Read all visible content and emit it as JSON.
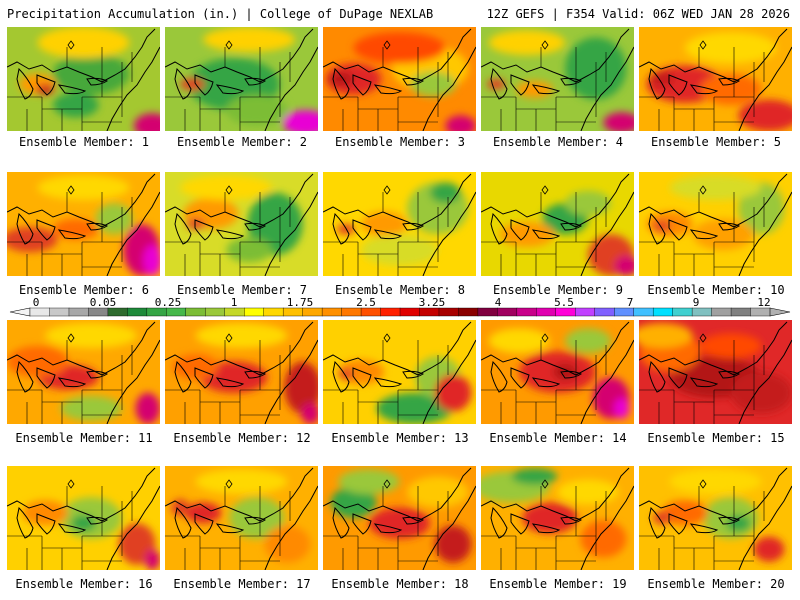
{
  "header": {
    "title": "Precipitation Accumulation (in.) | College of DuPage NEXLAB",
    "run_info": "12Z GEFS | F354 Valid: 06Z WED JAN 28 2026"
  },
  "members": [
    {
      "label": "Ensemble Member: 1",
      "base": "#a4c830",
      "blobs": [
        [
          "#46a83a",
          0.55,
          0.45,
          0.25,
          0.2
        ],
        [
          "#ff9a00",
          0.2,
          0.55,
          0.12,
          0.1
        ],
        [
          "#cc1a1a",
          0.25,
          0.6,
          0.06,
          0.05
        ],
        [
          "#d40070",
          0.95,
          0.95,
          0.12,
          0.12
        ],
        [
          "#ffd100",
          0.5,
          0.15,
          0.3,
          0.15
        ],
        [
          "#35a545",
          0.45,
          0.75,
          0.15,
          0.12
        ]
      ]
    },
    {
      "label": "Ensemble Member: 2",
      "base": "#9ac83a",
      "blobs": [
        [
          "#35a545",
          0.45,
          0.55,
          0.3,
          0.25
        ],
        [
          "#e04020",
          0.18,
          0.55,
          0.08,
          0.06
        ],
        [
          "#e800d4",
          0.92,
          0.92,
          0.15,
          0.12
        ],
        [
          "#ffd100",
          0.55,
          0.12,
          0.3,
          0.12
        ],
        [
          "#7cbd36",
          0.6,
          0.8,
          0.2,
          0.15
        ]
      ]
    },
    {
      "label": "Ensemble Member: 3",
      "base": "#ff8a00",
      "blobs": [
        [
          "#e02828",
          0.2,
          0.5,
          0.18,
          0.15
        ],
        [
          "#b31515",
          0.12,
          0.5,
          0.08,
          0.06
        ],
        [
          "#ffc800",
          0.7,
          0.4,
          0.25,
          0.22
        ],
        [
          "#9ac83a",
          0.72,
          0.55,
          0.15,
          0.12
        ],
        [
          "#ff4a00",
          0.5,
          0.2,
          0.3,
          0.15
        ],
        [
          "#d40070",
          0.9,
          0.95,
          0.1,
          0.1
        ]
      ]
    },
    {
      "label": "Ensemble Member: 4",
      "base": "#9ac83a",
      "blobs": [
        [
          "#35a545",
          0.75,
          0.4,
          0.2,
          0.3
        ],
        [
          "#ffd100",
          0.3,
          0.15,
          0.25,
          0.12
        ],
        [
          "#e04020",
          0.1,
          0.55,
          0.06,
          0.05
        ],
        [
          "#d40070",
          0.92,
          0.92,
          0.12,
          0.1
        ],
        [
          "#ff9a00",
          0.35,
          0.6,
          0.12,
          0.08
        ]
      ]
    },
    {
      "label": "Ensemble Member: 5",
      "base": "#ffb000",
      "blobs": [
        [
          "#e02828",
          0.3,
          0.55,
          0.25,
          0.18
        ],
        [
          "#c41a1a",
          0.15,
          0.5,
          0.08,
          0.07
        ],
        [
          "#ff6a00",
          0.6,
          0.6,
          0.2,
          0.15
        ],
        [
          "#ffd800",
          0.6,
          0.2,
          0.3,
          0.15
        ],
        [
          "#e02828",
          0.85,
          0.85,
          0.2,
          0.15
        ]
      ]
    },
    {
      "label": "Ensemble Member: 6",
      "base": "#ffb000",
      "blobs": [
        [
          "#e04020",
          0.15,
          0.65,
          0.18,
          0.12
        ],
        [
          "#d40070",
          0.88,
          0.75,
          0.12,
          0.25
        ],
        [
          "#e800d4",
          0.95,
          0.85,
          0.06,
          0.15
        ],
        [
          "#9ac83a",
          0.7,
          0.45,
          0.12,
          0.15
        ],
        [
          "#ff6a00",
          0.45,
          0.55,
          0.15,
          0.1
        ],
        [
          "#ffd800",
          0.5,
          0.15,
          0.3,
          0.12
        ]
      ]
    },
    {
      "label": "Ensemble Member: 7",
      "base": "#d8dc28",
      "blobs": [
        [
          "#35a545",
          0.72,
          0.5,
          0.18,
          0.3
        ],
        [
          "#ff9a00",
          0.3,
          0.4,
          0.18,
          0.15
        ],
        [
          "#e04020",
          0.2,
          0.5,
          0.06,
          0.05
        ],
        [
          "#ffd800",
          0.4,
          0.15,
          0.3,
          0.12
        ],
        [
          "#7cbd36",
          0.55,
          0.75,
          0.15,
          0.12
        ]
      ]
    },
    {
      "label": "Ensemble Member: 8",
      "base": "#ffd800",
      "blobs": [
        [
          "#9ac83a",
          0.75,
          0.35,
          0.2,
          0.25
        ],
        [
          "#ff9a00",
          0.4,
          0.5,
          0.15,
          0.12
        ],
        [
          "#e04020",
          0.15,
          0.55,
          0.06,
          0.05
        ],
        [
          "#d8dc28",
          0.5,
          0.75,
          0.25,
          0.15
        ],
        [
          "#35a545",
          0.8,
          0.2,
          0.1,
          0.1
        ]
      ]
    },
    {
      "label": "Ensemble Member: 9",
      "base": "#e8d800",
      "blobs": [
        [
          "#35a545",
          0.55,
          0.45,
          0.15,
          0.15
        ],
        [
          "#ff9a00",
          0.3,
          0.6,
          0.18,
          0.12
        ],
        [
          "#e04020",
          0.85,
          0.8,
          0.15,
          0.2
        ],
        [
          "#d40070",
          0.95,
          0.9,
          0.08,
          0.1
        ],
        [
          "#9ac83a",
          0.7,
          0.3,
          0.15,
          0.12
        ]
      ]
    },
    {
      "label": "Ensemble Member: 10",
      "base": "#ffd000",
      "blobs": [
        [
          "#9ac83a",
          0.8,
          0.35,
          0.15,
          0.25
        ],
        [
          "#ff8a00",
          0.2,
          0.5,
          0.15,
          0.12
        ],
        [
          "#e04020",
          0.15,
          0.52,
          0.06,
          0.05
        ],
        [
          "#ffa000",
          0.55,
          0.6,
          0.2,
          0.15
        ],
        [
          "#d8dc28",
          0.5,
          0.15,
          0.3,
          0.12
        ]
      ]
    },
    {
      "label": "Ensemble Member: 11",
      "base": "#ffa800",
      "blobs": [
        [
          "#e02828",
          0.4,
          0.55,
          0.2,
          0.12
        ],
        [
          "#ff6a00",
          0.2,
          0.4,
          0.2,
          0.15
        ],
        [
          "#d40070",
          0.92,
          0.85,
          0.08,
          0.15
        ],
        [
          "#9ac83a",
          0.55,
          0.85,
          0.2,
          0.12
        ],
        [
          "#ffd800",
          0.55,
          0.15,
          0.3,
          0.12
        ]
      ]
    },
    {
      "label": "Ensemble Member: 12",
      "base": "#ffa000",
      "blobs": [
        [
          "#e02828",
          0.45,
          0.55,
          0.22,
          0.15
        ],
        [
          "#c41a1a",
          0.9,
          0.65,
          0.12,
          0.25
        ],
        [
          "#ff6a00",
          0.2,
          0.45,
          0.15,
          0.12
        ],
        [
          "#ffd800",
          0.5,
          0.15,
          0.3,
          0.12
        ],
        [
          "#d40070",
          0.95,
          0.9,
          0.06,
          0.1
        ]
      ]
    },
    {
      "label": "Ensemble Member: 13",
      "base": "#ffd000",
      "blobs": [
        [
          "#35a545",
          0.6,
          0.85,
          0.25,
          0.15
        ],
        [
          "#9ac83a",
          0.75,
          0.55,
          0.15,
          0.2
        ],
        [
          "#e02828",
          0.85,
          0.7,
          0.12,
          0.18
        ],
        [
          "#ff8a00",
          0.25,
          0.5,
          0.15,
          0.12
        ],
        [
          "#e04020",
          0.15,
          0.52,
          0.05,
          0.05
        ]
      ]
    },
    {
      "label": "Ensemble Member: 14",
      "base": "#ff9a00",
      "blobs": [
        [
          "#e02828",
          0.5,
          0.5,
          0.25,
          0.2
        ],
        [
          "#b31515",
          0.55,
          0.5,
          0.08,
          0.08
        ],
        [
          "#d40070",
          0.85,
          0.75,
          0.12,
          0.2
        ],
        [
          "#e800d4",
          0.92,
          0.85,
          0.05,
          0.1
        ],
        [
          "#9ac83a",
          0.7,
          0.2,
          0.15,
          0.12
        ],
        [
          "#ffd800",
          0.25,
          0.2,
          0.2,
          0.12
        ]
      ]
    },
    {
      "label": "Ensemble Member: 15",
      "base": "#e02828",
      "blobs": [
        [
          "#b31515",
          0.5,
          0.55,
          0.3,
          0.2
        ],
        [
          "#ff6a00",
          0.2,
          0.3,
          0.2,
          0.2
        ],
        [
          "#ffb000",
          0.15,
          0.15,
          0.2,
          0.12
        ],
        [
          "#c41a1a",
          0.8,
          0.7,
          0.2,
          0.2
        ],
        [
          "#ff4a00",
          0.6,
          0.25,
          0.2,
          0.12
        ]
      ]
    },
    {
      "label": "Ensemble Member: 16",
      "base": "#ffd000",
      "blobs": [
        [
          "#9ac83a",
          0.55,
          0.5,
          0.2,
          0.2
        ],
        [
          "#35a545",
          0.5,
          0.55,
          0.08,
          0.08
        ],
        [
          "#e04020",
          0.85,
          0.75,
          0.12,
          0.2
        ],
        [
          "#ff8a00",
          0.25,
          0.45,
          0.15,
          0.12
        ],
        [
          "#d40070",
          0.95,
          0.9,
          0.05,
          0.1
        ]
      ]
    },
    {
      "label": "Ensemble Member: 17",
      "base": "#ffb000",
      "blobs": [
        [
          "#9ac83a",
          0.6,
          0.5,
          0.18,
          0.2
        ],
        [
          "#e02828",
          0.25,
          0.45,
          0.12,
          0.1
        ],
        [
          "#ff8a00",
          0.8,
          0.75,
          0.15,
          0.18
        ],
        [
          "#e04020",
          0.1,
          0.4,
          0.06,
          0.08
        ],
        [
          "#ffd800",
          0.5,
          0.15,
          0.3,
          0.12
        ]
      ]
    },
    {
      "label": "Ensemble Member: 18",
      "base": "#ff9a00",
      "blobs": [
        [
          "#e02828",
          0.5,
          0.55,
          0.2,
          0.15
        ],
        [
          "#35a545",
          0.2,
          0.35,
          0.15,
          0.15
        ],
        [
          "#9ac83a",
          0.3,
          0.15,
          0.2,
          0.12
        ],
        [
          "#ffc800",
          0.75,
          0.25,
          0.2,
          0.15
        ],
        [
          "#c41a1a",
          0.85,
          0.75,
          0.12,
          0.18
        ]
      ]
    },
    {
      "label": "Ensemble Member: 19",
      "base": "#ffb000",
      "blobs": [
        [
          "#e02828",
          0.45,
          0.5,
          0.18,
          0.15
        ],
        [
          "#9ac83a",
          0.2,
          0.2,
          0.25,
          0.15
        ],
        [
          "#35a545",
          0.35,
          0.1,
          0.15,
          0.08
        ],
        [
          "#ff6a00",
          0.8,
          0.7,
          0.15,
          0.18
        ],
        [
          "#ffd800",
          0.7,
          0.25,
          0.2,
          0.12
        ]
      ]
    },
    {
      "label": "Ensemble Member: 20",
      "base": "#ffc000",
      "blobs": [
        [
          "#9ac83a",
          0.6,
          0.5,
          0.18,
          0.2
        ],
        [
          "#35a545",
          0.65,
          0.55,
          0.08,
          0.08
        ],
        [
          "#ff6a00",
          0.3,
          0.45,
          0.15,
          0.12
        ],
        [
          "#e04020",
          0.15,
          0.5,
          0.06,
          0.06
        ],
        [
          "#ffd800",
          0.5,
          0.15,
          0.3,
          0.12
        ],
        [
          "#e02828",
          0.85,
          0.8,
          0.1,
          0.12
        ]
      ]
    }
  ],
  "colorbar": {
    "labels": [
      "0",
      "0.05",
      "0.25",
      "1",
      "1.75",
      "2.5",
      "3.25",
      "4",
      "5.5",
      "7",
      "9",
      "12"
    ],
    "colors": [
      "#e8e8e8",
      "#c8c8c8",
      "#a8a8a8",
      "#888888",
      "#2e6b2e",
      "#1e8a3a",
      "#35a545",
      "#46b84a",
      "#7cbd36",
      "#9ac83a",
      "#c4d828",
      "#ffff00",
      "#ffd800",
      "#ffc000",
      "#ffa800",
      "#ff9000",
      "#ff7800",
      "#ff5000",
      "#ff2000",
      "#e00000",
      "#c40000",
      "#a80000",
      "#8a0000",
      "#800040",
      "#a00060",
      "#c8008a",
      "#e000b0",
      "#ff00d8",
      "#c040ff",
      "#8060ff",
      "#6090ff",
      "#40c0ff",
      "#00e0ff",
      "#40d0d0",
      "#80c0c0",
      "#a0a0a0",
      "#808080",
      "#b0b0b0"
    ]
  }
}
